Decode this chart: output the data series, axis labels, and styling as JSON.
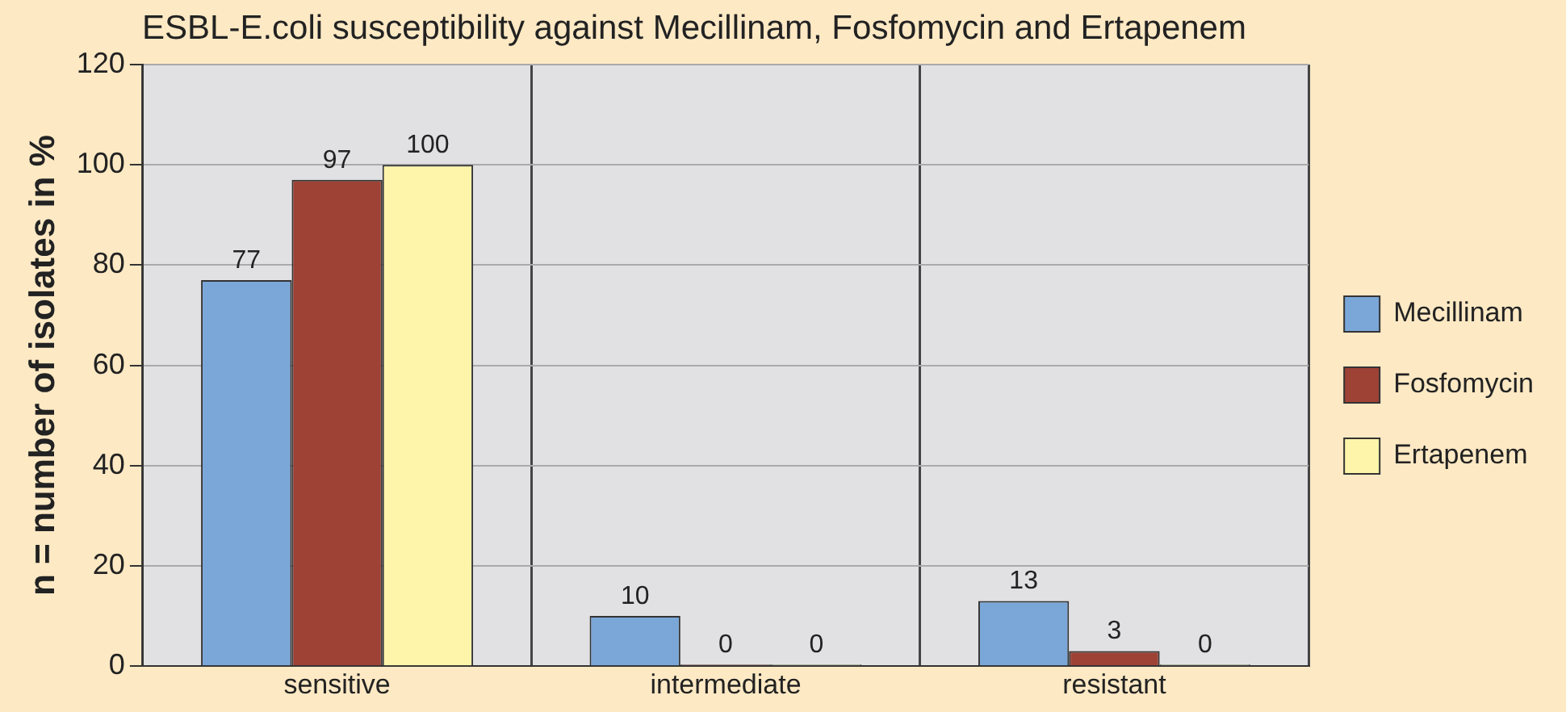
{
  "chart_data": {
    "type": "bar",
    "title": "ESBL-E.coli susceptibility against Mecillinam, Fosfomycin and Ertapenem",
    "ylabel": "n = number of isolates in %",
    "categories": [
      "sensitive",
      "intermediate",
      "resistant"
    ],
    "series": [
      {
        "name": "Mecillinam",
        "color": "#7ba7d8",
        "values": [
          77,
          10,
          13
        ]
      },
      {
        "name": "Fosfomycin",
        "color": "#9e4236",
        "values": [
          97,
          0,
          3
        ]
      },
      {
        "name": "Ertapenem",
        "color": "#fff5aa",
        "values": [
          100,
          0,
          0
        ]
      }
    ],
    "ylim": [
      0,
      120
    ],
    "yticks": [
      0,
      20,
      40,
      60,
      80,
      100,
      120
    ],
    "grid": true,
    "legend": "right",
    "data_labels": true
  }
}
